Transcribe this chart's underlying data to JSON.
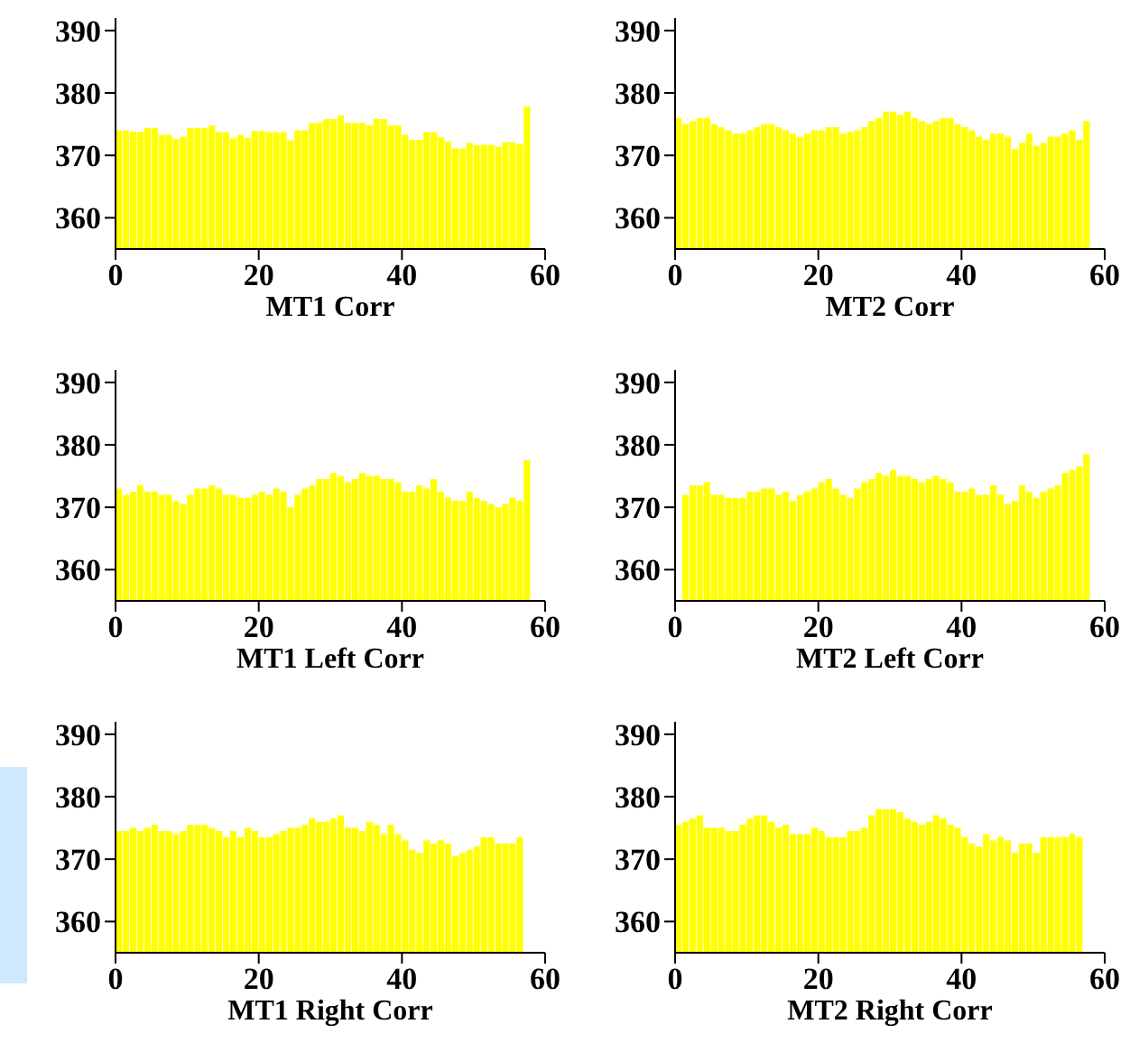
{
  "chart_data": [
    {
      "type": "histogram",
      "xlabel": "MT1      Corr",
      "color": "#ffff00",
      "xlim": [
        0,
        60
      ],
      "ylim": [
        355,
        392
      ],
      "xticks": [
        0,
        20,
        40,
        60
      ],
      "yticks": [
        360,
        370,
        380,
        390
      ],
      "bins": [
        0,
        1,
        2,
        3,
        4,
        5,
        6,
        7,
        8,
        9,
        10,
        11,
        12,
        13,
        14,
        15,
        16,
        17,
        18,
        19,
        20,
        21,
        22,
        23,
        24,
        25,
        26,
        27,
        28,
        29,
        30,
        31,
        32,
        33,
        34,
        35,
        36,
        37,
        38,
        39,
        40,
        41,
        42,
        43,
        44,
        45,
        46,
        47,
        48,
        49,
        50,
        51,
        52,
        53,
        54,
        55,
        56,
        57,
        58
      ],
      "values": [
        374,
        374,
        373.8,
        373.8,
        374.4,
        374.4,
        373.3,
        373.3,
        372.6,
        373,
        374.4,
        374.4,
        374.4,
        374.8,
        373.7,
        373.7,
        372.7,
        373.3,
        372.8,
        373.9,
        373.9,
        373.7,
        373.7,
        373.7,
        372.4,
        374,
        374,
        375.2,
        375.2,
        375.8,
        375.8,
        376.4,
        375.2,
        375.2,
        375.2,
        374.8,
        375.8,
        375.8,
        374.8,
        374.8,
        373.3,
        372.5,
        372.5,
        373.7,
        373.7,
        372.9,
        372.2,
        371.1,
        371.1,
        372,
        371.6,
        371.7,
        371.7,
        371.4,
        372.1,
        372.1,
        371.8,
        377.8
      ]
    },
    {
      "type": "histogram",
      "xlabel": "MT2      Corr",
      "color": "#ffff00",
      "xlim": [
        0,
        60
      ],
      "ylim": [
        355,
        392
      ],
      "xticks": [
        0,
        20,
        40,
        60
      ],
      "yticks": [
        360,
        370,
        380,
        390
      ],
      "bins": [
        0,
        1,
        2,
        3,
        4,
        5,
        6,
        7,
        8,
        9,
        10,
        11,
        12,
        13,
        14,
        15,
        16,
        17,
        18,
        19,
        20,
        21,
        22,
        23,
        24,
        25,
        26,
        27,
        28,
        29,
        30,
        31,
        32,
        33,
        34,
        35,
        36,
        37,
        38,
        39,
        40,
        41,
        42,
        43,
        44,
        45,
        46,
        47,
        48,
        49,
        50,
        51,
        52,
        53,
        54,
        55,
        56,
        57,
        58
      ],
      "values": [
        376,
        375,
        375.5,
        376,
        376,
        375,
        374.5,
        374,
        373.5,
        373.5,
        374,
        374.5,
        375,
        375,
        374.5,
        374,
        373.5,
        373,
        373.5,
        374,
        374,
        374.5,
        374.5,
        373.5,
        373.8,
        374,
        374.5,
        375.5,
        376,
        377,
        377,
        376.5,
        377,
        376,
        375.5,
        375,
        375.5,
        376,
        376,
        375,
        374.5,
        374,
        373,
        372.5,
        373.5,
        373.5,
        373,
        371,
        372,
        373.5,
        371.5,
        372,
        373,
        373,
        373.5,
        374,
        372.5,
        375.5
      ]
    },
    {
      "type": "histogram",
      "xlabel": "MT1 Left  Corr",
      "color": "#ffff00",
      "xlim": [
        0,
        60
      ],
      "ylim": [
        355,
        392
      ],
      "xticks": [
        0,
        20,
        40,
        60
      ],
      "yticks": [
        360,
        370,
        380,
        390
      ],
      "bins": [
        0,
        1,
        2,
        3,
        4,
        5,
        6,
        7,
        8,
        9,
        10,
        11,
        12,
        13,
        14,
        15,
        16,
        17,
        18,
        19,
        20,
        21,
        22,
        23,
        24,
        25,
        26,
        27,
        28,
        29,
        30,
        31,
        32,
        33,
        34,
        35,
        36,
        37,
        38,
        39,
        40,
        41,
        42,
        43,
        44,
        45,
        46,
        47,
        48,
        49,
        50,
        51,
        52,
        53,
        54,
        55,
        56,
        57,
        58
      ],
      "values": [
        373,
        372,
        372.5,
        373.5,
        372.5,
        372.5,
        372,
        372,
        371,
        370.5,
        372,
        373,
        373,
        373.5,
        373,
        372,
        372,
        371.5,
        371.5,
        372,
        372.5,
        372,
        373,
        372.5,
        370,
        372,
        373,
        373.5,
        374.5,
        374.5,
        375.5,
        375,
        374,
        374.5,
        375.5,
        375,
        375,
        374.5,
        374.5,
        374,
        372.5,
        372.5,
        373.5,
        373,
        374.5,
        372.5,
        371.5,
        371,
        371,
        372.5,
        371.5,
        371,
        370.5,
        370,
        370.5,
        371.5,
        371,
        377.5
      ]
    },
    {
      "type": "histogram",
      "xlabel": "MT2 Left  Corr",
      "color": "#ffff00",
      "xlim": [
        0,
        60
      ],
      "ylim": [
        355,
        392
      ],
      "xticks": [
        0,
        20,
        40,
        60
      ],
      "yticks": [
        360,
        370,
        380,
        390
      ],
      "bins": [
        1,
        2,
        3,
        4,
        5,
        6,
        7,
        8,
        9,
        10,
        11,
        12,
        13,
        14,
        15,
        16,
        17,
        18,
        19,
        20,
        21,
        22,
        23,
        24,
        25,
        26,
        27,
        28,
        29,
        30,
        31,
        32,
        33,
        34,
        35,
        36,
        37,
        38,
        39,
        40,
        41,
        42,
        43,
        44,
        45,
        46,
        47,
        48,
        49,
        50,
        51,
        52,
        53,
        54,
        55,
        56,
        57,
        58
      ],
      "values": [
        372,
        373.5,
        373.5,
        374,
        372,
        372,
        371.5,
        371.5,
        371.5,
        372.5,
        372.5,
        373,
        373,
        372,
        372.5,
        371,
        372,
        372.5,
        373,
        374,
        374.5,
        373,
        372,
        371.5,
        373,
        374,
        374.5,
        375.5,
        375,
        376,
        375,
        375,
        374.5,
        374,
        374.5,
        375,
        374.5,
        374,
        372.5,
        372.5,
        373,
        372,
        372,
        373.5,
        372,
        370.5,
        371,
        373.5,
        372.5,
        371.5,
        372.5,
        373,
        373.5,
        375.5,
        376,
        376.5,
        378.5
      ]
    },
    {
      "type": "histogram",
      "xlabel": "MT1 Right  Corr",
      "color": "#ffff00",
      "xlim": [
        0,
        60
      ],
      "ylim": [
        355,
        392
      ],
      "xticks": [
        0,
        20,
        40,
        60
      ],
      "yticks": [
        360,
        370,
        380,
        390
      ],
      "bins": [
        0,
        1,
        2,
        3,
        4,
        5,
        6,
        7,
        8,
        9,
        10,
        11,
        12,
        13,
        14,
        15,
        16,
        17,
        18,
        19,
        20,
        21,
        22,
        23,
        24,
        25,
        26,
        27,
        28,
        29,
        30,
        31,
        32,
        33,
        34,
        35,
        36,
        37,
        38,
        39,
        40,
        41,
        42,
        43,
        44,
        45,
        46,
        47,
        48,
        49,
        50,
        51,
        52,
        53,
        54,
        55,
        56,
        57
      ],
      "values": [
        374.5,
        374.5,
        375,
        374.5,
        375,
        375.5,
        374.5,
        374.5,
        374,
        374.5,
        375.5,
        375.5,
        375.5,
        375,
        374.5,
        373.5,
        374.5,
        373.5,
        375,
        374.5,
        373.5,
        373.5,
        374,
        374.5,
        375,
        375,
        375.5,
        376.5,
        376,
        376,
        376.5,
        377,
        375,
        375,
        374.5,
        376,
        375.5,
        374,
        375.5,
        374,
        373,
        371.5,
        371,
        373,
        372.5,
        373,
        372.5,
        370.5,
        371,
        371.5,
        372,
        373.5,
        373.5,
        372.5,
        372.5,
        372.5,
        373.5
      ]
    },
    {
      "type": "histogram",
      "xlabel": "MT2 Right  Corr",
      "color": "#ffff00",
      "xlim": [
        0,
        60
      ],
      "ylim": [
        355,
        392
      ],
      "xticks": [
        0,
        20,
        40,
        60
      ],
      "yticks": [
        360,
        370,
        380,
        390
      ],
      "bins": [
        0,
        1,
        2,
        3,
        4,
        5,
        6,
        7,
        8,
        9,
        10,
        11,
        12,
        13,
        14,
        15,
        16,
        17,
        18,
        19,
        20,
        21,
        22,
        23,
        24,
        25,
        26,
        27,
        28,
        29,
        30,
        31,
        32,
        33,
        34,
        35,
        36,
        37,
        38,
        39,
        40,
        41,
        42,
        43,
        44,
        45,
        46,
        47,
        48,
        49,
        50,
        51,
        52,
        53,
        54,
        55,
        56,
        57
      ],
      "values": [
        375.5,
        376,
        376.5,
        377,
        375,
        375,
        375,
        374.5,
        374.5,
        375.5,
        376.5,
        377,
        377,
        376,
        375,
        375.5,
        374,
        374,
        374,
        375,
        374.5,
        373.5,
        373.5,
        373.5,
        374.5,
        374.5,
        375,
        377,
        378,
        378,
        378,
        377.5,
        376.5,
        376,
        375.5,
        376,
        377,
        376.5,
        375.5,
        375,
        373.5,
        372.5,
        372,
        374,
        373,
        373.5,
        373,
        371,
        372.5,
        372.5,
        371,
        373.5,
        373.5,
        373.5,
        373.5,
        374,
        373.5
      ]
    }
  ]
}
